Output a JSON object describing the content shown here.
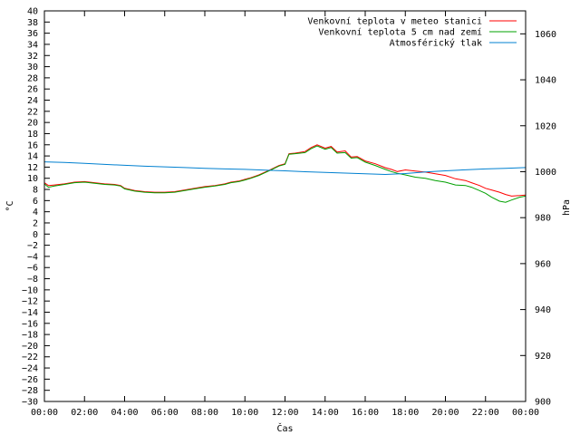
{
  "chart_data": {
    "type": "line",
    "xlabel": "Čas",
    "ylabel": "°C",
    "y2label": "hPa",
    "ylim": [
      -30,
      40
    ],
    "y2lim": [
      900,
      1070
    ],
    "xlim": [
      0,
      24
    ],
    "x_ticks": [
      "00:00",
      "02:00",
      "04:00",
      "06:00",
      "08:00",
      "10:00",
      "12:00",
      "14:00",
      "16:00",
      "18:00",
      "20:00",
      "22:00",
      "00:00"
    ],
    "y_ticks": [
      "-30",
      "-28",
      "-26",
      "-24",
      "-22",
      "-20",
      "-18",
      "-16",
      "-14",
      "-12",
      "-10",
      "-8",
      "-6",
      "-4",
      "-2",
      "0",
      "2",
      "4",
      "6",
      "8",
      "10",
      "12",
      "14",
      "16",
      "18",
      "20",
      "22",
      "24",
      "26",
      "28",
      "30",
      "32",
      "34",
      "36",
      "38",
      "40"
    ],
    "y2_ticks": [
      "900",
      "920",
      "940",
      "960",
      "980",
      "1000",
      "1020",
      "1040",
      "1060"
    ],
    "legend_position": "top-right",
    "series": [
      {
        "name": "Venkovní teplota v meteo stanici",
        "color": "#ff0000",
        "axis": "left",
        "x": [
          0,
          0.2,
          0.5,
          1,
          1.5,
          2,
          2.5,
          3,
          3.5,
          3.8,
          4,
          4.5,
          5,
          5.5,
          6,
          6.5,
          7,
          7.5,
          8,
          8.5,
          9,
          9.3,
          9.7,
          10,
          10.3,
          10.7,
          11,
          11.3,
          11.7,
          12,
          12.2,
          12.5,
          13,
          13.3,
          13.6,
          14,
          14.3,
          14.6,
          15,
          15.3,
          15.6,
          16,
          16.5,
          17,
          17.3,
          17.6,
          18,
          18.5,
          19,
          19.5,
          20,
          20.5,
          21,
          21.3,
          21.7,
          22,
          22.3,
          22.7,
          23,
          23.3,
          23.7,
          24
        ],
        "y": [
          9.2,
          8.7,
          8.8,
          9,
          9.3,
          9.4,
          9.2,
          9,
          8.9,
          8.7,
          8.2,
          7.8,
          7.6,
          7.5,
          7.5,
          7.6,
          7.9,
          8.2,
          8.5,
          8.7,
          9,
          9.3,
          9.5,
          9.8,
          10.1,
          10.6,
          11.1,
          11.6,
          12.3,
          12.6,
          14.4,
          14.5,
          14.8,
          15.5,
          16,
          15.4,
          15.7,
          14.7,
          14.9,
          13.8,
          13.9,
          13.1,
          12.6,
          11.9,
          11.6,
          11.2,
          11.5,
          11.3,
          11.1,
          10.8,
          10.5,
          9.9,
          9.6,
          9.2,
          8.7,
          8.2,
          7.9,
          7.5,
          7.1,
          6.8,
          6.9,
          7
        ]
      },
      {
        "name": "Venkovní teplota 5 cm nad zemí",
        "color": "#00a000",
        "axis": "left",
        "x": [
          0,
          0.2,
          0.5,
          1,
          1.5,
          2,
          2.5,
          3,
          3.5,
          3.8,
          4,
          4.5,
          5,
          5.5,
          6,
          6.5,
          7,
          7.5,
          8,
          8.5,
          9,
          9.3,
          9.7,
          10,
          10.3,
          10.7,
          11,
          11.3,
          11.7,
          12,
          12.2,
          12.5,
          13,
          13.3,
          13.6,
          14,
          14.3,
          14.6,
          15,
          15.3,
          15.6,
          16,
          16.5,
          17,
          17.3,
          17.6,
          18,
          18.5,
          19,
          19.5,
          20,
          20.5,
          21,
          21.3,
          21.7,
          22,
          22.3,
          22.7,
          23,
          23.3,
          23.7,
          24
        ],
        "y": [
          9,
          8.4,
          8.6,
          8.9,
          9.2,
          9.3,
          9.1,
          8.9,
          8.8,
          8.6,
          8.1,
          7.7,
          7.5,
          7.4,
          7.4,
          7.5,
          7.8,
          8.1,
          8.4,
          8.6,
          8.9,
          9.2,
          9.4,
          9.7,
          10,
          10.5,
          11,
          11.5,
          12.2,
          12.5,
          14.3,
          14.4,
          14.6,
          15.3,
          15.8,
          15.2,
          15.5,
          14.5,
          14.6,
          13.6,
          13.7,
          12.9,
          12.3,
          11.6,
          11.2,
          10.9,
          10.6,
          10.2,
          10,
          9.6,
          9.3,
          8.8,
          8.7,
          8.4,
          7.8,
          7.3,
          6.6,
          5.9,
          5.7,
          6.1,
          6.6,
          6.8
        ]
      },
      {
        "name": "Atmosférický tlak",
        "color": "#0080d0",
        "axis": "right",
        "x": [
          0,
          1,
          2,
          3,
          4,
          5,
          6,
          7,
          8,
          9,
          10,
          11,
          12,
          13,
          14,
          15,
          16,
          17,
          18,
          19,
          20,
          21,
          22,
          23,
          24
        ],
        "y": [
          1004.3,
          1004,
          1003.6,
          1003.2,
          1002.8,
          1002.4,
          1002.1,
          1001.8,
          1001.5,
          1001.2,
          1001,
          1000.7,
          1000.4,
          1000,
          999.7,
          999.4,
          999.1,
          998.8,
          999.2,
          999.9,
          1000.4,
          1000.8,
          1001.2,
          1001.5,
          1001.8
        ]
      }
    ]
  }
}
